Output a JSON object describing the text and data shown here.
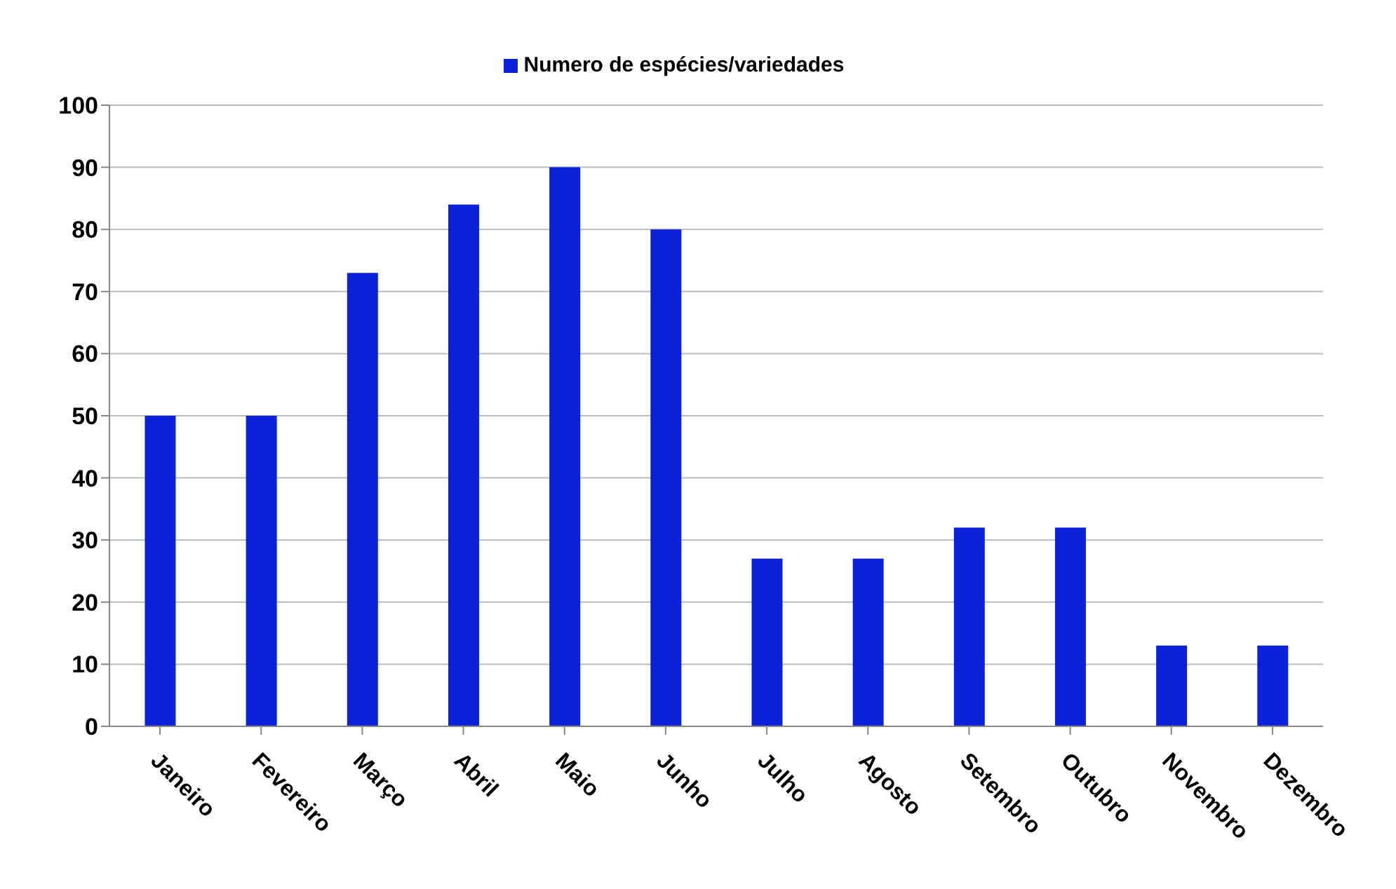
{
  "chart_data": {
    "type": "bar",
    "categories": [
      "Janeiro",
      "Fevereiro",
      "Março",
      "Abril",
      "Maio",
      "Junho",
      "Julho",
      "Agosto",
      "Setembro",
      "Outubro",
      "Novembro",
      "Dezembro"
    ],
    "series": [
      {
        "name": "Numero de espécies/variedades",
        "color": "#0c22d8",
        "values": [
          50,
          50,
          73,
          84,
          90,
          80,
          27,
          27,
          32,
          32,
          13,
          13
        ]
      }
    ],
    "ylim": [
      0,
      100
    ],
    "yticks": [
      0,
      10,
      20,
      30,
      40,
      50,
      60,
      70,
      80,
      90,
      100
    ],
    "grid": "y",
    "legend": "top"
  }
}
